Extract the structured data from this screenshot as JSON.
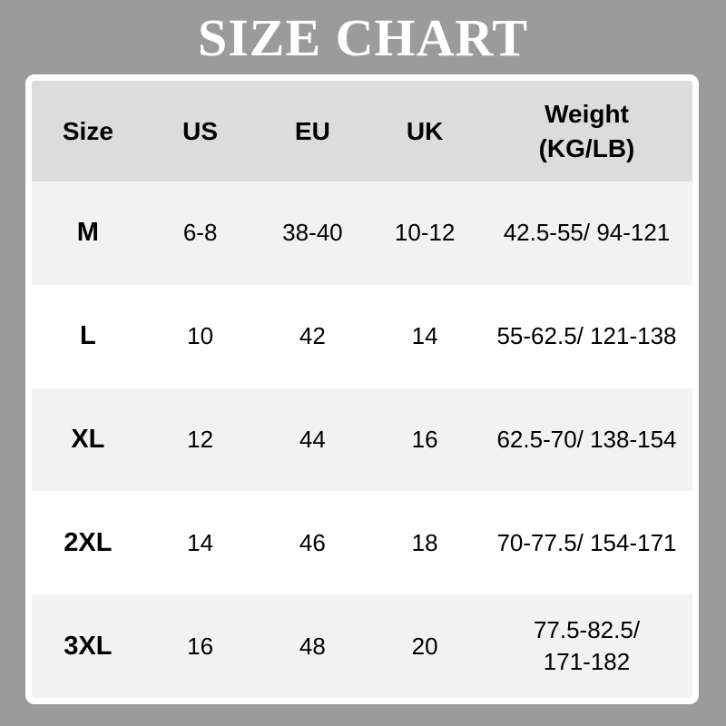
{
  "page": {
    "title": "SIZE CHART"
  },
  "colors": {
    "background": "#9b9b9b",
    "title_text": "#ffffff",
    "table_border": "#ffffff",
    "header_row_bg": "#dcdcdc",
    "row_alt_bg": "#f2f2f2",
    "row_bg": "#ffffff",
    "text": "#000000"
  },
  "chart_data": {
    "type": "table",
    "title": "SIZE CHART",
    "columns": [
      "Size",
      "US",
      "EU",
      "UK",
      "Weight (KG/LB)"
    ],
    "rows": [
      [
        "M",
        "6-8",
        "38-40",
        "10-12",
        "42.5-55/ 94-121"
      ],
      [
        "L",
        "10",
        "42",
        "14",
        "55-62.5/ 121-138"
      ],
      [
        "XL",
        "12",
        "44",
        "16",
        "62.5-70/ 138-154"
      ],
      [
        "2XL",
        "14",
        "46",
        "18",
        "70-77.5/ 154-171"
      ],
      [
        "3XL",
        "16",
        "48",
        "20",
        "77.5-82.5/ 171-182"
      ]
    ]
  }
}
